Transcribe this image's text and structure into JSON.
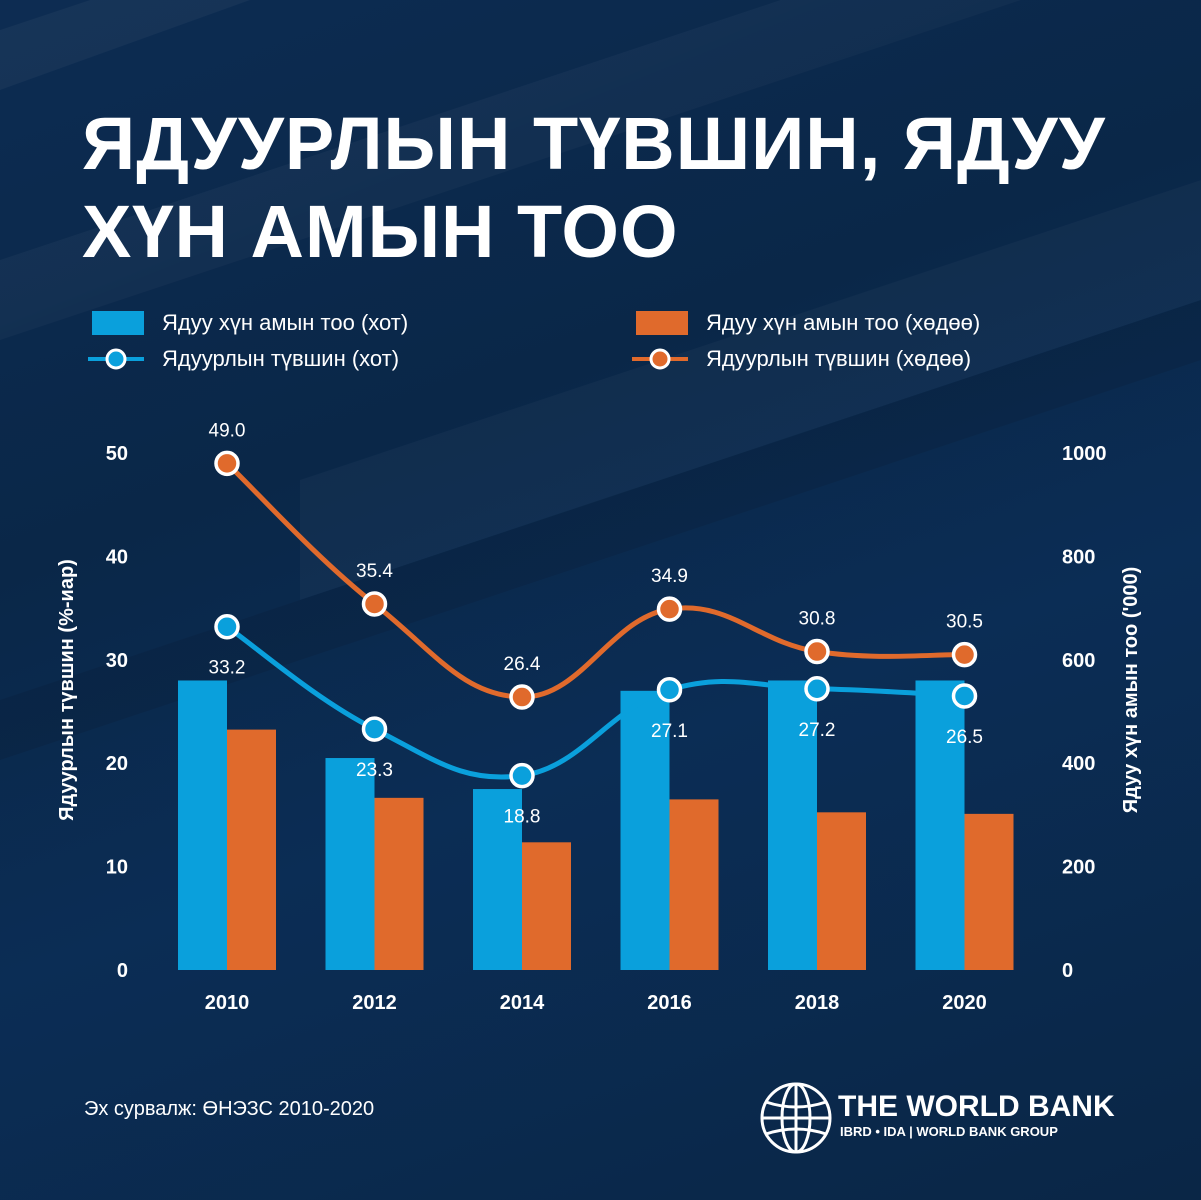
{
  "title": "ЯДУУРЛЫН ТҮВШИН, ЯДУУ ХҮН АМЫН ТОО",
  "legend": {
    "bar_city": "Ядуу хүн амын тоо (хот)",
    "bar_rural": "Ядуу хүн амын тоо (хөдөө)",
    "line_city": "Ядуурлын түвшин (хот)",
    "line_rural": "Ядуурлын түвшин (хөдөө)"
  },
  "colors": {
    "city": "#0aa0dc",
    "rural": "#e06a2c",
    "background": "#0b2a4f"
  },
  "source": "Эх сурвалж: ӨНЭЗС 2010-2020",
  "logo": {
    "name": "THE WORLD BANK",
    "sub": "IBRD • IDA | WORLD BANK GROUP",
    "icon": "globe-icon"
  },
  "chart_data": {
    "type": "bar",
    "categories": [
      "2010",
      "2012",
      "2014",
      "2016",
      "2018",
      "2020"
    ],
    "left_axis": {
      "title": "Ядуурлын түвшин (%-иар)",
      "ticks": [
        "0",
        "10",
        "20",
        "30",
        "40",
        "50"
      ],
      "range": [
        0,
        50
      ]
    },
    "right_axis": {
      "title": "Ядуу хүн амын тоо ('000)",
      "ticks": [
        "0",
        "200",
        "400",
        "600",
        "800",
        "1000"
      ],
      "range": [
        0,
        1000
      ]
    },
    "bar_series": [
      {
        "name": "Ядуу хүн амын тоо (хот)",
        "axis": "right",
        "values": [
          560,
          410,
          350,
          540,
          560,
          560
        ]
      },
      {
        "name": "Ядуу хүн амын тоо (хөдөө)",
        "axis": "right",
        "values": [
          465,
          333,
          247,
          330,
          305,
          302
        ]
      }
    ],
    "line_series": [
      {
        "name": "Ядуурлын түвшин (хот)",
        "axis": "left",
        "values": [
          33.2,
          23.3,
          18.8,
          27.1,
          27.2,
          26.5
        ],
        "labels": [
          "33.2",
          "23.3",
          "18.8",
          "27.1",
          "27.2",
          "26.5"
        ]
      },
      {
        "name": "Ядуурлын түвшин (хөдөө)",
        "axis": "left",
        "values": [
          49.0,
          35.4,
          26.4,
          34.9,
          30.8,
          30.5
        ],
        "labels": [
          "49.0",
          "35.4",
          "26.4",
          "34.9",
          "30.8",
          "30.5"
        ]
      }
    ],
    "grid": false,
    "legend_position": "top"
  }
}
